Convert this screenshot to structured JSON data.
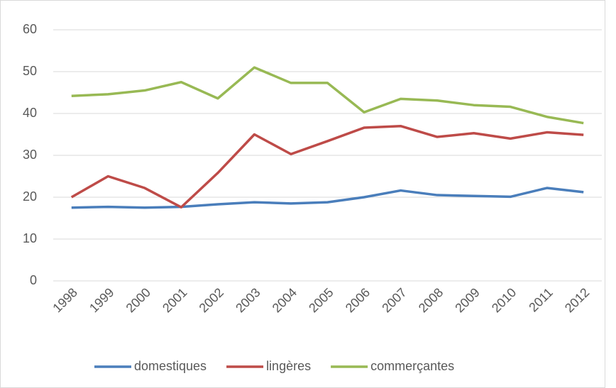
{
  "chart_data": {
    "type": "line",
    "categories": [
      "1998",
      "1999",
      "2000",
      "2001",
      "2002",
      "2003",
      "2004",
      "2005",
      "2006",
      "2007",
      "2008",
      "2009",
      "2010",
      "2011",
      "2012"
    ],
    "series": [
      {
        "name": "domestiques",
        "color": "#4a7ebb",
        "values": [
          17.5,
          17.7,
          17.5,
          17.7,
          18.3,
          18.8,
          18.5,
          18.8,
          20,
          21.6,
          20.5,
          20.3,
          20.1,
          22.2,
          21.2
        ]
      },
      {
        "name": "lingères",
        "color": "#be4b48",
        "values": [
          20,
          25,
          22.2,
          17.6,
          25.8,
          35,
          30.3,
          33.4,
          36.6,
          37,
          34.4,
          35.3,
          34,
          35.5,
          34.9
        ]
      },
      {
        "name": "commerçantes",
        "color": "#98b954",
        "values": [
          44.2,
          44.6,
          45.5,
          47.5,
          43.6,
          51,
          47.3,
          47.3,
          40.3,
          43.5,
          43.1,
          42,
          41.6,
          39.2,
          37.7
        ]
      }
    ],
    "ylim": [
      0,
      60
    ],
    "yticks": [
      0,
      10,
      20,
      30,
      40,
      50,
      60
    ],
    "grid": true,
    "legend": "bottom"
  }
}
